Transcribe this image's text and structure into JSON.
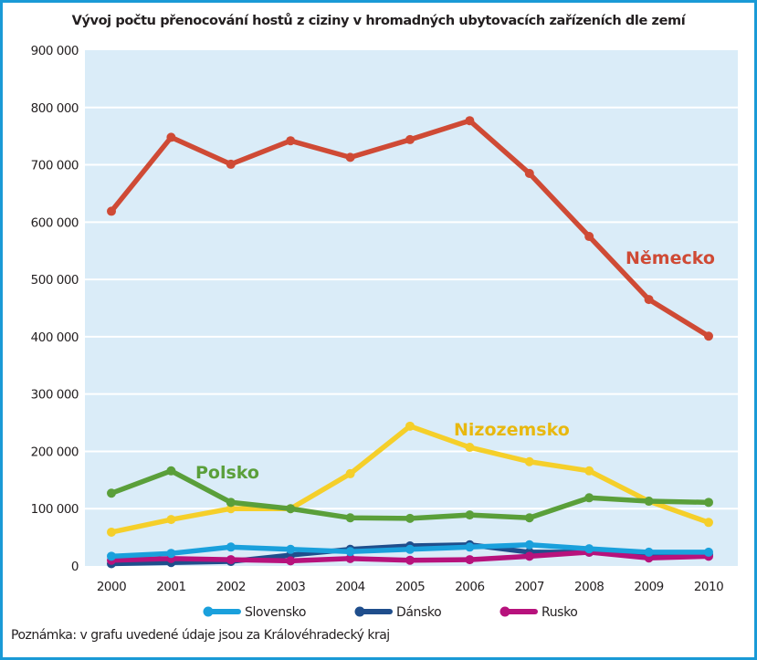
{
  "chart_data": {
    "type": "line",
    "title": "Vývoj počtu přenocování hostů z ciziny v hromadných ubytovacích zařízeních dle zemí",
    "xlabel": "",
    "ylabel": "",
    "x": [
      "2000",
      "2001",
      "2002",
      "2003",
      "2004",
      "2005",
      "2006",
      "2007",
      "2008",
      "2009",
      "2010"
    ],
    "ylim": [
      0,
      900000
    ],
    "yticks": [
      0,
      100000,
      200000,
      300000,
      400000,
      500000,
      600000,
      700000,
      800000,
      900000
    ],
    "ytick_labels": [
      "0",
      "100 000",
      "200 000",
      "300 000",
      "400 000",
      "500 000",
      "600 000",
      "700 000",
      "800 000",
      "900 000"
    ],
    "grid": true,
    "background": "#daecf8",
    "series": [
      {
        "name": "Německo",
        "color": "#cf4a35",
        "direct_label": true,
        "in_legend": false,
        "values": [
          619000,
          748000,
          701000,
          742000,
          713000,
          744000,
          777000,
          685000,
          575000,
          465000,
          401000
        ]
      },
      {
        "name": "Nizozemsko",
        "color": "#f5cf2a",
        "label_color": "#e8b80f",
        "direct_label": true,
        "in_legend": false,
        "values": [
          59000,
          81000,
          100000,
          100000,
          161000,
          244000,
          207000,
          182000,
          166000,
          113000,
          76000
        ]
      },
      {
        "name": "Polsko",
        "color": "#5a9f3a",
        "direct_label": true,
        "in_legend": false,
        "values": [
          127000,
          166000,
          111000,
          100000,
          84000,
          83000,
          89000,
          84000,
          119000,
          113000,
          111000
        ]
      },
      {
        "name": "Dánsko",
        "color": "#1f4e8c",
        "direct_label": false,
        "in_legend": true,
        "values": [
          4000,
          6000,
          8000,
          19000,
          29000,
          35000,
          37000,
          24000,
          24000,
          18000,
          20000
        ]
      },
      {
        "name": "Rusko",
        "color": "#b7127c",
        "direct_label": false,
        "in_legend": true,
        "values": [
          10000,
          13000,
          11000,
          9000,
          13000,
          10000,
          11000,
          17000,
          24000,
          14000,
          17000
        ]
      },
      {
        "name": "Slovensko",
        "color": "#1aa0dc",
        "direct_label": false,
        "in_legend": true,
        "values": [
          17000,
          22000,
          33000,
          29000,
          25000,
          29000,
          33000,
          37000,
          30000,
          24000,
          24000
        ]
      }
    ],
    "legend": {
      "placement": "bottom",
      "entries": [
        "Slovensko",
        "Dánsko",
        "Rusko"
      ]
    },
    "note": "Poznámka: v grafu uvedené údaje jsou za Královéhradecký kraj"
  }
}
